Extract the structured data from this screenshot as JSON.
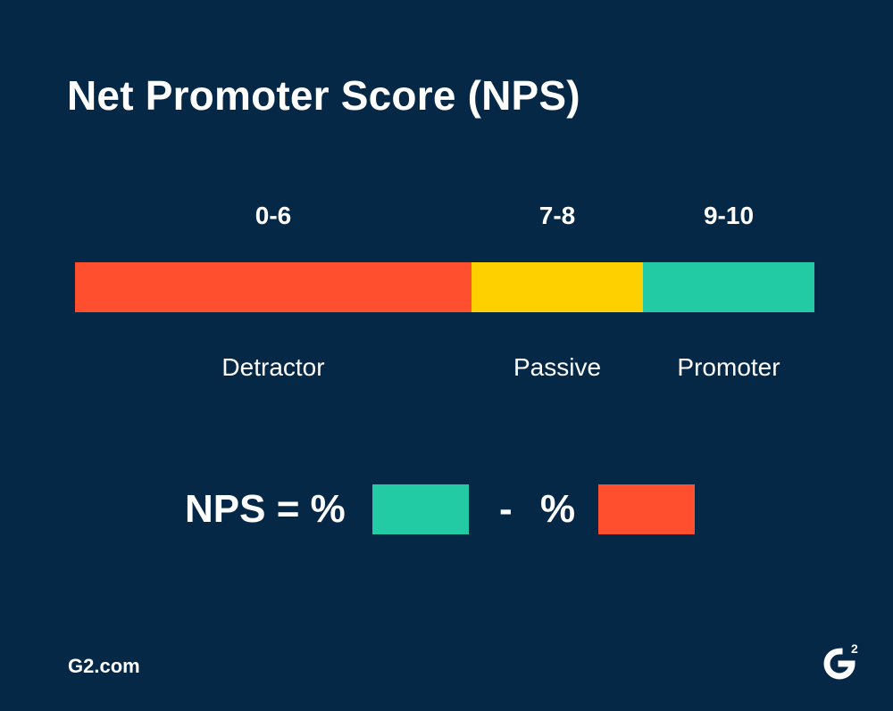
{
  "title": "Net Promoter Score (NPS)",
  "colors": {
    "background": "#062847",
    "detractor": "#ff4f2f",
    "passive": "#ffd000",
    "promoter": "#23cba5",
    "text": "#ffffff"
  },
  "scale": {
    "segments": [
      {
        "range": "0-6",
        "label": "Detractor",
        "color": "#ff4f2f"
      },
      {
        "range": "7-8",
        "label": "Passive",
        "color": "#ffd000"
      },
      {
        "range": "9-10",
        "label": "Promoter",
        "color": "#23cba5"
      }
    ]
  },
  "formula": {
    "lhs": "NPS = %",
    "minus": "-",
    "percent": "%",
    "promoter_color": "#23cba5",
    "detractor_color": "#ff4f2f"
  },
  "footer": {
    "site": "G2.com",
    "logo_icon": "g2-logo-icon"
  }
}
